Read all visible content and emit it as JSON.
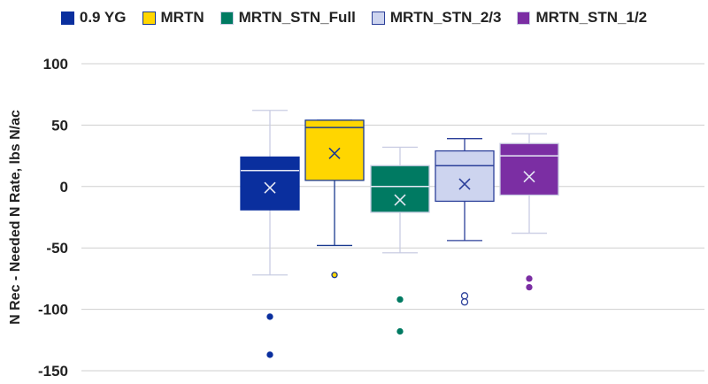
{
  "chart_data": {
    "type": "box",
    "ylabel": "N Rec - Needed N Rate, lbs N/ac",
    "ylim": [
      -150,
      100
    ],
    "yticks": [
      100,
      50,
      0,
      -50,
      -100,
      -150
    ],
    "grid": "horizontal",
    "legend_position": "top",
    "series": [
      {
        "name": "0.9 YG",
        "color": "#0a2f9e",
        "edge": "#0a2f9e",
        "whisker_color": "#c9cde3",
        "min": -72,
        "q1": -19,
        "median": 13,
        "q3": 24,
        "max": 62,
        "mean": -1,
        "outliers": [
          -106,
          -137
        ]
      },
      {
        "name": "MRTN",
        "color": "#ffd600",
        "edge": "#1a3a8f",
        "whisker_color": "#1a3a8f",
        "min": -48,
        "q1": 5,
        "median": 48,
        "q3": 54,
        "max": 54,
        "mean": 27,
        "outliers": [
          -72
        ]
      },
      {
        "name": "MRTN_STN_Full",
        "color": "#007a62",
        "edge": "#c9cde3",
        "whisker_color": "#c9cde3",
        "min": -54,
        "q1": -21,
        "median": 0,
        "q3": 17,
        "max": 32,
        "mean": -11,
        "outliers": [
          -92,
          -118
        ]
      },
      {
        "name": "MRTN_STN_2/3",
        "color": "#cdd4ef",
        "edge": "#2b3f99",
        "whisker_color": "#2b3f99",
        "min": -44,
        "q1": -12,
        "median": 17,
        "q3": 29,
        "max": 39,
        "mean": 2,
        "outliers": [
          -89,
          -94
        ]
      },
      {
        "name": "MRTN_STN_1/2",
        "color": "#7b2ea3",
        "edge": "#c9cde3",
        "whisker_color": "#c9cde3",
        "min": -38,
        "q1": -7,
        "median": 25,
        "q3": 35,
        "max": 43,
        "mean": 8,
        "outliers": [
          -75,
          -82
        ]
      }
    ]
  }
}
